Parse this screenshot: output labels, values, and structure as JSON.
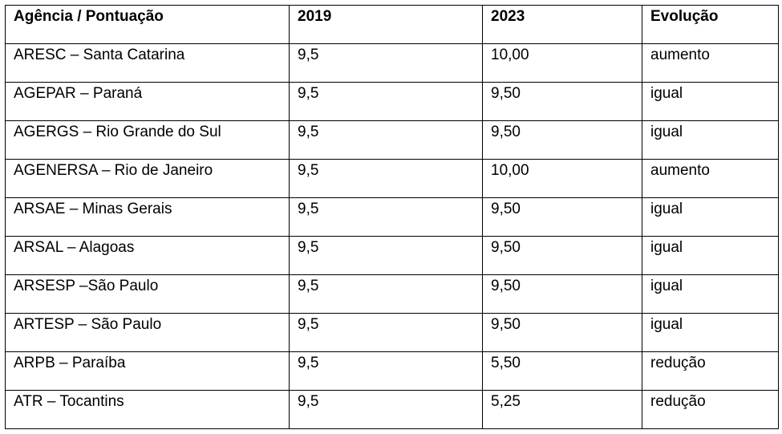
{
  "table": {
    "headers": [
      "Agência / Pontuação",
      "2019",
      "2023",
      "Evolução"
    ],
    "rows": [
      [
        "ARESC – Santa Catarina",
        "9,5",
        "10,00",
        "aumento"
      ],
      [
        "AGEPAR – Paraná",
        "9,5",
        "9,50",
        "igual"
      ],
      [
        "AGERGS – Rio Grande do Sul",
        "9,5",
        "9,50",
        "igual"
      ],
      [
        "AGENERSA – Rio de Janeiro",
        "9,5",
        "10,00",
        "aumento"
      ],
      [
        "ARSAE – Minas Gerais",
        "9,5",
        "9,50",
        "igual"
      ],
      [
        "ARSAL – Alagoas",
        "9,5",
        "9,50",
        "igual"
      ],
      [
        "ARSESP –São Paulo",
        "9,5",
        "9,50",
        "igual"
      ],
      [
        "ARTESP – São Paulo",
        "9,5",
        "9,50",
        "igual"
      ],
      [
        "ARPB – Paraíba",
        "9,5",
        "5,50",
        "redução"
      ],
      [
        "ATR – Tocantins",
        "9,5",
        "5,25",
        "redução"
      ]
    ]
  }
}
